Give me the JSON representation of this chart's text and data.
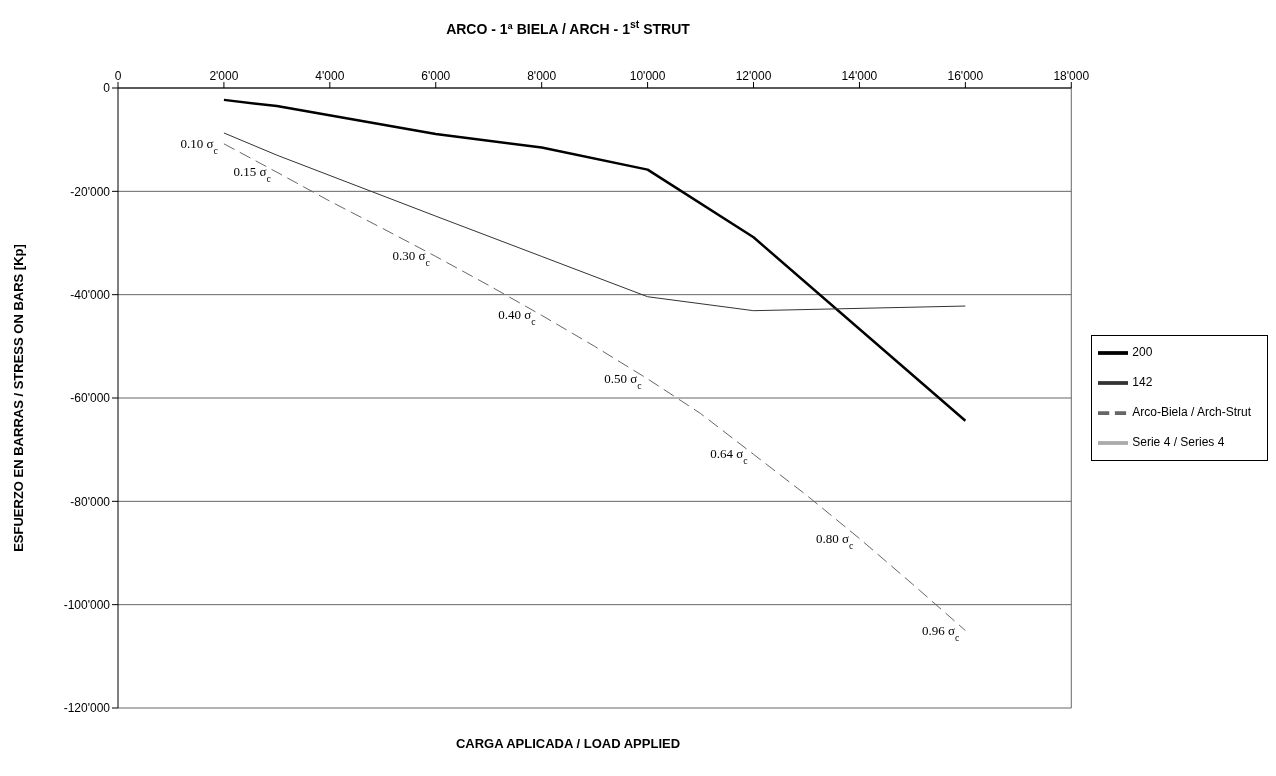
{
  "chart_data": {
    "type": "line",
    "title": "ARCO - 1ª BIELA / ARCH - 1$^{st}$ STRUT",
    "xlabel": "CARGA APLICADA / LOAD APPLIED",
    "ylabel": "ESFUERZO EN BARRAS / STRESS ON BARS  [Kp]",
    "xlim": [
      0,
      18000
    ],
    "xticks": [
      0,
      {
        "value": 2000,
        "label": "2'000"
      },
      {
        "value": 4000,
        "label": "4'000"
      },
      {
        "value": 6000,
        "label": "6'000"
      },
      {
        "value": 8000,
        "label": "8'000"
      },
      {
        "value": 10000,
        "label": "10'000"
      },
      {
        "value": 12000,
        "label": "12'000"
      },
      {
        "value": 14000,
        "label": "14'000"
      },
      {
        "value": 16000,
        "label": "16'000"
      },
      {
        "value": 18000,
        "label": "18'000"
      }
    ],
    "ylim": [
      -120000,
      0
    ],
    "yticks": [
      {
        "value": -120000,
        "label": "-120'000"
      },
      {
        "value": -100000,
        "label": "-100'000"
      },
      {
        "value": -80000,
        "label": "-80'000"
      },
      {
        "value": -60000,
        "label": "-60'000"
      },
      {
        "value": -40000,
        "label": "-40'000"
      },
      {
        "value": -20000,
        "label": "-20'000"
      },
      0
    ],
    "grid": "y",
    "legend": "right",
    "marker": "none",
    "series": [
      {
        "name": "200",
        "color": "#000000",
        "line_style": "solid",
        "x": [
          2000,
          3000,
          6000,
          8000,
          10000,
          12000,
          16000
        ],
        "values": [
          -2300,
          -3500,
          -8900,
          -11500,
          -15800,
          -28900,
          -64400
        ]
      },
      {
        "name": "142",
        "color": "#333333",
        "line_style": "solid",
        "x": [
          2000,
          3000,
          6000,
          8000,
          10000,
          12000,
          16000
        ],
        "values": [
          -8700,
          -13000,
          -24800,
          -32600,
          -40400,
          -43100,
          -42200
        ]
      },
      {
        "name": "Arco-Biela / Arch-Strut",
        "color": "#666666",
        "line_style": "dashed",
        "x": [
          2000,
          3000,
          4000,
          5000,
          6000,
          7000,
          8000,
          9000,
          10000,
          11000,
          12000,
          13000,
          14000,
          15000,
          16000
        ],
        "values": [
          -10800,
          -16300,
          -21900,
          -27200,
          -32600,
          -38200,
          -44000,
          -50000,
          -56300,
          -63000,
          -70900,
          -78800,
          -87200,
          -96000,
          -105000
        ]
      },
      {
        "name": "Serie 4 / Series 4",
        "color": "#aaaaaa",
        "line_style": "solid"
      }
    ],
    "annotations": [
      {
        "text": "0.10 σ$_{c}$",
        "x": 2000,
        "y": -10800
      },
      {
        "text": "0.15 σ$_{c}$",
        "x": 3000,
        "y": -16300
      },
      {
        "text": "0.30 σ$_{c}$",
        "x": 6000,
        "y": -32600
      },
      {
        "text": "0.40 σ$_{c}$",
        "x": 8000,
        "y": -44000
      },
      {
        "text": "0.50 σ$_{c}$",
        "x": 10000,
        "y": -56300
      },
      {
        "text": "0.64 σ$_{c}$",
        "x": 12000,
        "y": -70900
      },
      {
        "text": "0.80 σ$_{c}$",
        "x": 14000,
        "y": -87200
      },
      {
        "text": "0.96 σ$_{c}$",
        "x": 16000,
        "y": -105000
      }
    ]
  }
}
